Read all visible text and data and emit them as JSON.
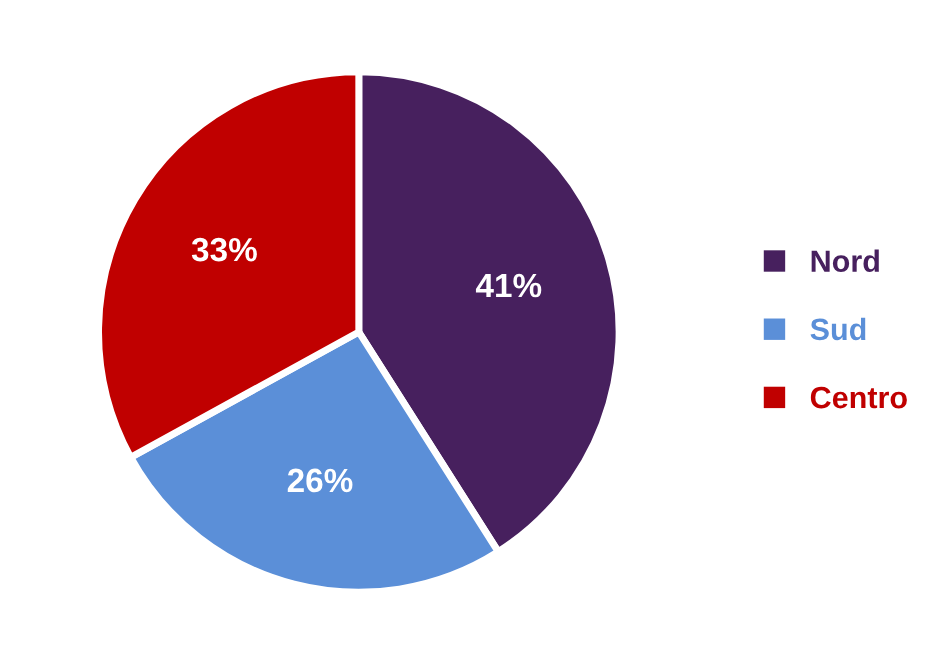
{
  "chart_data": {
    "type": "pie",
    "categories": [
      "Nord",
      "Sud",
      "Centro"
    ],
    "values": [
      41,
      26,
      33
    ],
    "colors": [
      "#47205e",
      "#5b8fd8",
      "#c00000"
    ],
    "value_labels": [
      "41%",
      "26%",
      "33%"
    ],
    "legend": "right"
  }
}
